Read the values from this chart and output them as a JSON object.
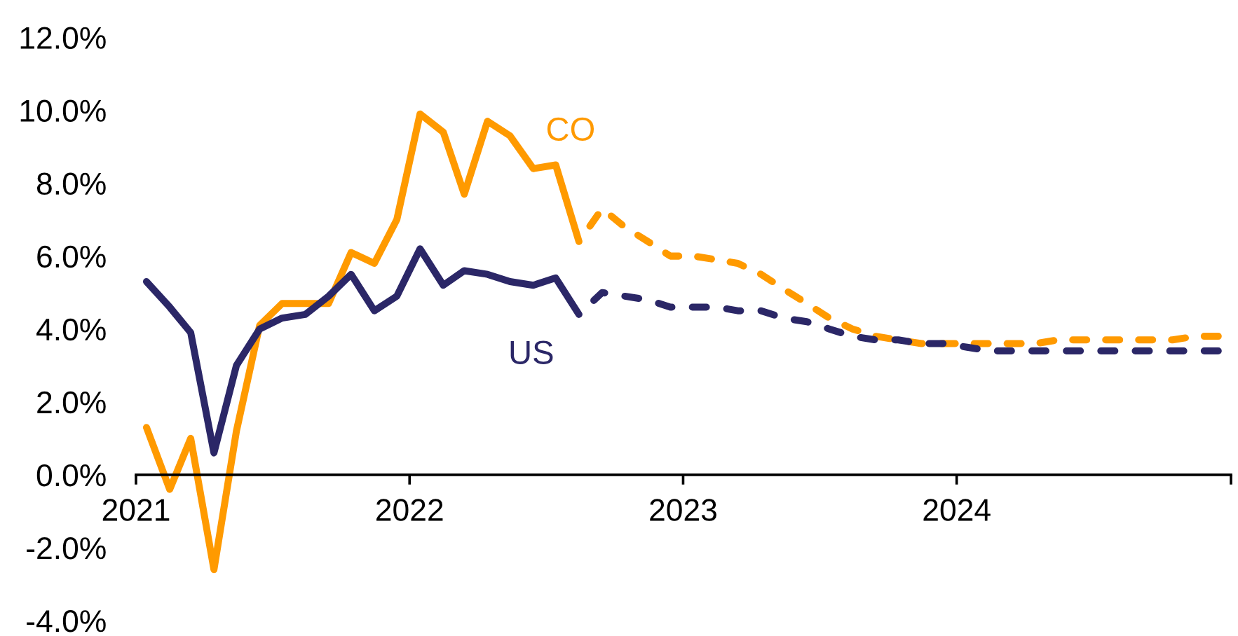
{
  "chart_data": {
    "type": "line",
    "series": [
      {
        "name": "CO",
        "color": "#ff9a00",
        "line_style": "solid",
        "x": [
          "2021-01-15",
          "2021-02-15",
          "2021-03-15",
          "2021-04-15",
          "2021-05-15",
          "2021-06-15",
          "2021-07-15",
          "2021-08-15",
          "2021-09-15",
          "2021-10-15",
          "2021-11-15",
          "2021-12-15",
          "2022-01-15",
          "2022-02-15",
          "2022-03-15",
          "2022-04-15",
          "2022-05-15",
          "2022-06-15",
          "2022-07-15",
          "2022-08-15"
        ],
        "values": [
          1.3,
          -0.4,
          1.0,
          -2.6,
          1.2,
          4.1,
          4.7,
          4.7,
          4.7,
          6.1,
          5.8,
          7.0,
          9.9,
          9.4,
          7.7,
          9.7,
          9.3,
          8.4,
          8.5,
          6.4
        ]
      },
      {
        "color": "#ff9a00",
        "line_style": "dashed",
        "x": [
          "2022-08-15",
          "2022-09-15",
          "2022-10-15",
          "2022-11-15",
          "2022-12-15",
          "2023-01-15",
          "2023-02-15",
          "2023-03-15",
          "2023-04-15",
          "2023-05-15",
          "2023-06-15",
          "2023-07-15",
          "2023-08-15",
          "2023-09-15",
          "2023-10-15",
          "2023-11-15",
          "2023-12-15",
          "2024-01-15",
          "2024-02-15",
          "2024-03-15",
          "2024-04-15",
          "2024-05-15",
          "2024-06-15",
          "2024-07-15",
          "2024-08-15",
          "2024-09-15",
          "2024-10-15",
          "2024-11-15",
          "2024-12-15"
        ],
        "values": [
          6.4,
          7.3,
          6.8,
          6.4,
          6.0,
          6.0,
          5.9,
          5.8,
          5.5,
          5.1,
          4.7,
          4.3,
          4.0,
          3.8,
          3.7,
          3.6,
          3.6,
          3.6,
          3.6,
          3.6,
          3.6,
          3.7,
          3.7,
          3.7,
          3.7,
          3.7,
          3.7,
          3.8,
          3.8
        ]
      },
      {
        "name": "US",
        "color": "#2b2767",
        "line_style": "solid",
        "x": [
          "2021-01-15",
          "2021-02-15",
          "2021-03-15",
          "2021-04-15",
          "2021-05-15",
          "2021-06-15",
          "2021-07-15",
          "2021-08-15",
          "2021-09-15",
          "2021-10-15",
          "2021-11-15",
          "2021-12-15",
          "2022-01-15",
          "2022-02-15",
          "2022-03-15",
          "2022-04-15",
          "2022-05-15",
          "2022-06-15",
          "2022-07-15",
          "2022-08-15"
        ],
        "values": [
          5.3,
          4.6,
          3.9,
          0.6,
          3.0,
          4.0,
          4.3,
          4.4,
          4.9,
          5.5,
          4.5,
          4.9,
          6.2,
          5.2,
          5.6,
          5.5,
          5.3,
          5.2,
          5.4,
          4.4
        ]
      },
      {
        "color": "#2b2767",
        "line_style": "dashed",
        "x": [
          "2022-08-15",
          "2022-09-15",
          "2022-10-15",
          "2022-11-15",
          "2022-12-15",
          "2023-01-15",
          "2023-02-15",
          "2023-03-15",
          "2023-04-15",
          "2023-05-15",
          "2023-06-15",
          "2023-07-15",
          "2023-08-15",
          "2023-09-15",
          "2023-10-15",
          "2023-11-15",
          "2023-12-15",
          "2024-01-15",
          "2024-02-15",
          "2024-03-15",
          "2024-04-15",
          "2024-05-15",
          "2024-06-15",
          "2024-07-15",
          "2024-08-15",
          "2024-09-15",
          "2024-10-15",
          "2024-11-15",
          "2024-12-15"
        ],
        "values": [
          4.4,
          5.0,
          4.9,
          4.8,
          4.6,
          4.6,
          4.6,
          4.5,
          4.5,
          4.3,
          4.2,
          4.0,
          3.8,
          3.7,
          3.7,
          3.6,
          3.6,
          3.5,
          3.4,
          3.4,
          3.4,
          3.4,
          3.4,
          3.4,
          3.4,
          3.4,
          3.4,
          3.4,
          3.4
        ]
      }
    ],
    "xlim": [
      "2021",
      "2025"
    ],
    "xticks": [
      "2021",
      "2022",
      "2023",
      "2024",
      {
        "value": "2025",
        "label": null
      }
    ],
    "ylim": [
      -4,
      12
    ],
    "yticks": [
      {
        "value": -4,
        "label": "-4.0%"
      },
      {
        "value": -2,
        "label": "-2.0%"
      },
      {
        "value": 0,
        "label": "0.0%"
      },
      {
        "value": 2,
        "label": "2.0%"
      },
      {
        "value": 4,
        "label": "4.0%"
      },
      {
        "value": 6,
        "label": "6.0%"
      },
      {
        "value": 8,
        "label": "8.0%"
      },
      {
        "value": 10,
        "label": "10.0%"
      },
      {
        "value": 12,
        "label": "12.0%"
      }
    ]
  }
}
